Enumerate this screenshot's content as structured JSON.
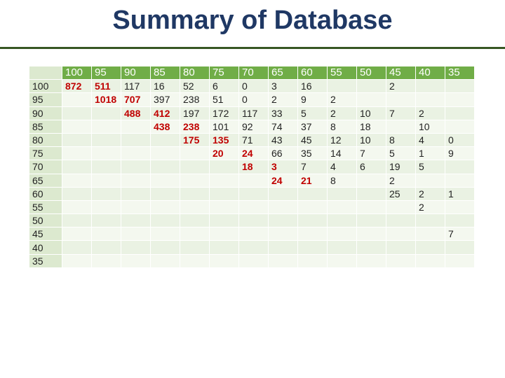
{
  "title": "Summary of Database",
  "columns": [
    "100",
    "95",
    "90",
    "85",
    "80",
    "75",
    "70",
    "65",
    "60",
    "55",
    "50",
    "45",
    "40",
    "35"
  ],
  "rows": [
    {
      "label": "100",
      "cells": [
        "872",
        "511",
        "117",
        "16",
        "52",
        "6",
        "0",
        "3",
        "16",
        "",
        "",
        "2",
        "",
        ""
      ]
    },
    {
      "label": "95",
      "cells": [
        "",
        "1018",
        "707",
        "397",
        "238",
        "51",
        "0",
        "2",
        "9",
        "2",
        "",
        "",
        "",
        ""
      ]
    },
    {
      "label": "90",
      "cells": [
        "",
        "",
        "488",
        "412",
        "197",
        "172",
        "117",
        "33",
        "5",
        "2",
        "10",
        "7",
        "2",
        ""
      ]
    },
    {
      "label": "85",
      "cells": [
        "",
        "",
        "",
        "438",
        "238",
        "101",
        "92",
        "74",
        "37",
        "8",
        "18",
        "",
        "10",
        ""
      ]
    },
    {
      "label": "80",
      "cells": [
        "",
        "",
        "",
        "",
        "175",
        "135",
        "71",
        "43",
        "45",
        "12",
        "10",
        "8",
        "4",
        "0"
      ]
    },
    {
      "label": "75",
      "cells": [
        "",
        "",
        "",
        "",
        "",
        "20",
        "24",
        "66",
        "35",
        "14",
        "7",
        "5",
        "1",
        "9"
      ]
    },
    {
      "label": "70",
      "cells": [
        "",
        "",
        "",
        "",
        "",
        "",
        "18",
        "3",
        "7",
        "4",
        "6",
        "19",
        "5",
        ""
      ]
    },
    {
      "label": "65",
      "cells": [
        "",
        "",
        "",
        "",
        "",
        "",
        "",
        "24",
        "21",
        "8",
        "",
        "2",
        "",
        ""
      ]
    },
    {
      "label": "60",
      "cells": [
        "",
        "",
        "",
        "",
        "",
        "",
        "",
        "",
        "",
        "",
        "",
        "25",
        "2",
        "1"
      ]
    },
    {
      "label": "55",
      "cells": [
        "",
        "",
        "",
        "",
        "",
        "",
        "",
        "",
        "",
        "",
        "",
        "",
        "2",
        ""
      ]
    },
    {
      "label": "50",
      "cells": [
        "",
        "",
        "",
        "",
        "",
        "",
        "",
        "",
        "",
        "",
        "",
        "",
        "",
        ""
      ]
    },
    {
      "label": "45",
      "cells": [
        "",
        "",
        "",
        "",
        "",
        "",
        "",
        "",
        "",
        "",
        "",
        "",
        "",
        "7"
      ]
    },
    {
      "label": "40",
      "cells": [
        "",
        "",
        "",
        "",
        "",
        "",
        "",
        "",
        "",
        "",
        "",
        "",
        "",
        ""
      ]
    },
    {
      "label": "35",
      "cells": [
        "",
        "",
        "",
        "",
        "",
        "",
        "",
        "",
        "",
        "",
        "",
        "",
        "",
        ""
      ]
    }
  ],
  "highlight_color": "#c00000",
  "header_color": "#70ad47",
  "title_color": "#1f3864"
}
